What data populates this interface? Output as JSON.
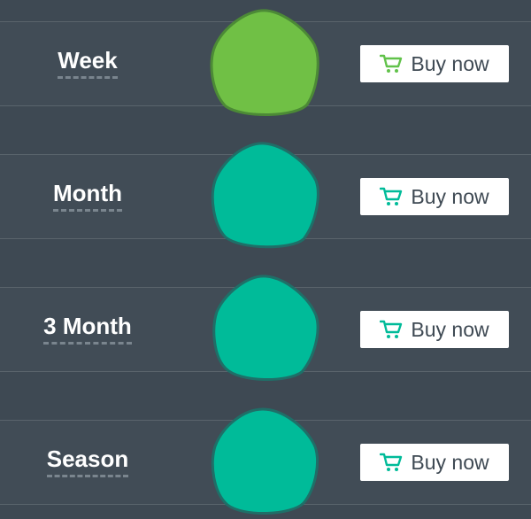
{
  "colors": {
    "background": "#3e4953",
    "active_green": "#70c045",
    "active_green_border": "#4c8a36",
    "teal": "#00bb99",
    "teal_border": "#1f6f68",
    "cart_green": "#61c24a",
    "cart_teal": "#00bb99"
  },
  "plans": [
    {
      "label": "Week",
      "button_label": "Buy now",
      "icon": "shopping-cart-icon",
      "selected": true
    },
    {
      "label": "Month",
      "button_label": "Buy now",
      "icon": "shopping-cart-icon",
      "selected": false
    },
    {
      "label": "3 Month",
      "button_label": "Buy now",
      "icon": "shopping-cart-icon",
      "selected": false
    },
    {
      "label": "Season",
      "button_label": "Buy now",
      "icon": "shopping-cart-icon",
      "selected": false
    }
  ]
}
